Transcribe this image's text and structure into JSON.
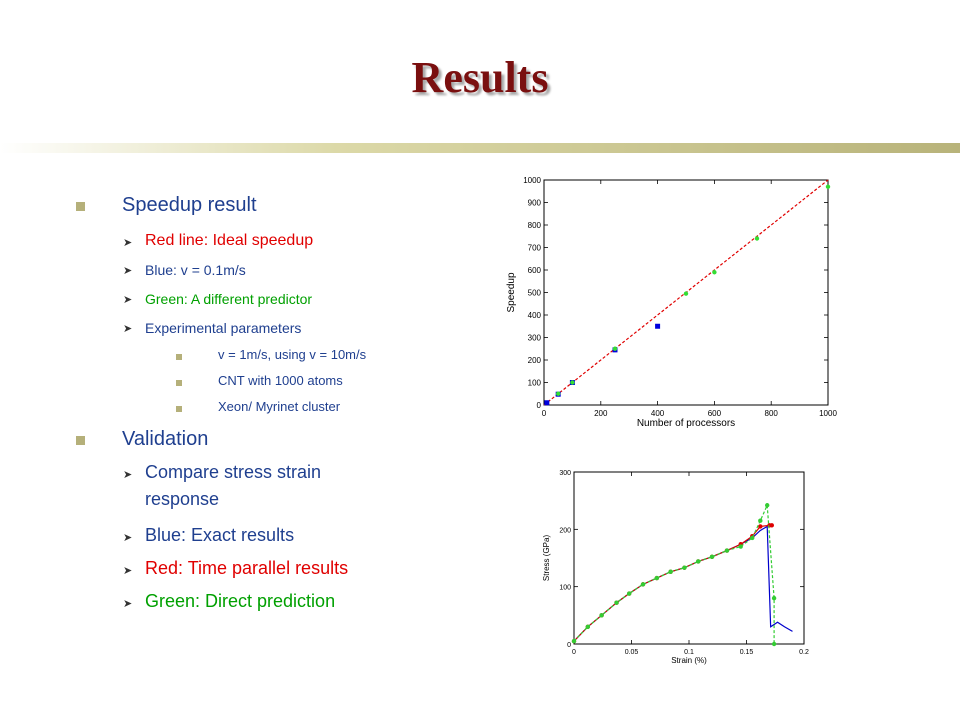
{
  "slide": {
    "title": "Results",
    "accent_color": "#c8c48a",
    "title_color": "#7a0f0f"
  },
  "bullets": {
    "speedup": {
      "label": "Speedup result",
      "items": [
        {
          "text": "Red line: Ideal speedup",
          "color": "#e00000"
        },
        {
          "text": "Blue: v = 0.1m/s",
          "color": "#1f3f8f"
        },
        {
          "text": "Green: A different predictor",
          "color": "#00a000"
        },
        {
          "text": "Experimental parameters",
          "color": "#1f3f8f"
        }
      ],
      "params": [
        "v = 1m/s, using v = 10m/s",
        "CNT with 1000 atoms",
        "Xeon/ Myrinet cluster"
      ]
    },
    "validation": {
      "label": "Validation",
      "items": [
        {
          "text_line1": "Compare stress strain",
          "text_line2": "response",
          "color": "#1f3f8f"
        },
        {
          "text": "Blue: Exact results",
          "color": "#1f3f8f"
        },
        {
          "text": "Red: Time parallel results",
          "color": "#e00000"
        },
        {
          "text": "Green: Direct prediction",
          "color": "#00a000"
        }
      ]
    }
  },
  "chart_data": [
    {
      "type": "scatter",
      "xlabel": "Number of processors",
      "ylabel": "Speedup",
      "xlim": [
        0,
        1000
      ],
      "ylim": [
        0,
        1000
      ],
      "xticks": [
        0,
        200,
        400,
        600,
        800,
        1000
      ],
      "yticks": [
        0,
        100,
        200,
        300,
        400,
        500,
        600,
        700,
        800,
        900,
        1000
      ],
      "series": [
        {
          "color": "#e00000",
          "style": "dashed-line",
          "x": [
            0,
            1000
          ],
          "y": [
            0,
            1000
          ]
        },
        {
          "color": "#0000dd",
          "style": "square",
          "x": [
            10,
            50,
            100,
            250,
            400
          ],
          "y": [
            10,
            48,
            100,
            245,
            350
          ]
        },
        {
          "color": "#33dd33",
          "style": "dot",
          "x": [
            50,
            100,
            250,
            500,
            600,
            750,
            1000
          ],
          "y": [
            50,
            100,
            250,
            495,
            590,
            740,
            970
          ]
        }
      ]
    },
    {
      "type": "line",
      "xlabel": "Strain (%)",
      "ylabel": "Stress (GPa)",
      "xlim": [
        0,
        0.2
      ],
      "ylim": [
        0,
        300
      ],
      "xticks": [
        "0",
        "0.05",
        "0.1",
        "0.15",
        "0.2"
      ],
      "xtick_values": [
        0,
        0.05,
        0.1,
        0.15,
        0.2
      ],
      "yticks": [
        0,
        100,
        200,
        300
      ],
      "series": [
        {
          "color": "#0000cc",
          "style": "line",
          "x": [
            0,
            0.012,
            0.024,
            0.037,
            0.048,
            0.06,
            0.072,
            0.084,
            0.096,
            0.108,
            0.12,
            0.133,
            0.145,
            0.155,
            0.162,
            0.168,
            0.171,
            0.177,
            0.183,
            0.19
          ],
          "y": [
            5,
            30,
            50,
            72,
            88,
            104,
            115,
            126,
            133,
            144,
            152,
            163,
            174,
            185,
            198,
            205,
            30,
            38,
            30,
            22
          ]
        },
        {
          "color": "#dd0000",
          "style": "line-dots",
          "x": [
            0,
            0.012,
            0.024,
            0.037,
            0.048,
            0.06,
            0.072,
            0.084,
            0.096,
            0.108,
            0.12,
            0.133,
            0.145,
            0.155,
            0.162,
            0.17,
            0.172
          ],
          "y": [
            5,
            30,
            50,
            72,
            88,
            104,
            115,
            126,
            133,
            144,
            152,
            163,
            174,
            188,
            205,
            207,
            207
          ]
        },
        {
          "color": "#33cc33",
          "style": "dashed-dots",
          "x": [
            0,
            0.012,
            0.024,
            0.037,
            0.048,
            0.06,
            0.072,
            0.084,
            0.096,
            0.108,
            0.12,
            0.133,
            0.145,
            0.155,
            0.162,
            0.168,
            0.174,
            0.174
          ],
          "y": [
            5,
            30,
            50,
            72,
            88,
            104,
            115,
            126,
            133,
            144,
            152,
            163,
            170,
            185,
            215,
            242,
            80,
            0
          ]
        }
      ]
    }
  ]
}
